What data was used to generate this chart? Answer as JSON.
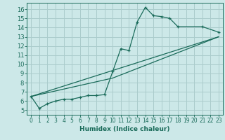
{
  "xlabel": "Humidex (Indice chaleur)",
  "bg_color": "#cce8e8",
  "grid_color": "#aacccc",
  "line_color": "#1a6b5a",
  "xlim": [
    -0.5,
    23.5
  ],
  "ylim": [
    4.5,
    16.7
  ],
  "xticks": [
    0,
    1,
    2,
    3,
    4,
    5,
    6,
    7,
    8,
    9,
    10,
    11,
    12,
    13,
    14,
    15,
    16,
    17,
    18,
    19,
    20,
    21,
    22,
    23
  ],
  "yticks": [
    5,
    6,
    7,
    8,
    9,
    10,
    11,
    12,
    13,
    14,
    15,
    16
  ],
  "line1_x": [
    0,
    1,
    2,
    3,
    4,
    5,
    6,
    7,
    8,
    9,
    10,
    11,
    12,
    13,
    14,
    15,
    16,
    17,
    18,
    21,
    23
  ],
  "line1_y": [
    6.5,
    5.2,
    5.7,
    6.0,
    6.2,
    6.2,
    6.4,
    6.6,
    6.6,
    6.7,
    9.2,
    11.7,
    11.5,
    14.6,
    16.2,
    15.3,
    15.2,
    15.0,
    14.1,
    14.1,
    13.5
  ],
  "line2_x": [
    0,
    23
  ],
  "line2_y": [
    6.5,
    13.0
  ],
  "line3_x": [
    0,
    10,
    23
  ],
  "line3_y": [
    6.5,
    8.5,
    13.0
  ]
}
